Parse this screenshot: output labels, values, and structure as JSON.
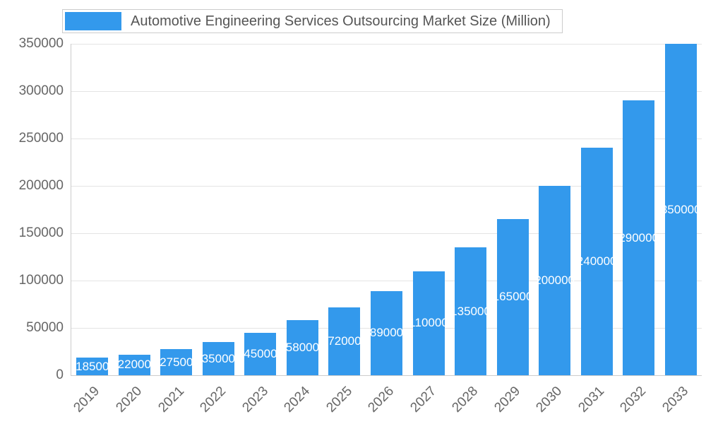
{
  "chart_data": {
    "type": "bar",
    "title": "Automotive Engineering Services Outsourcing Market Size (Million)",
    "categories": [
      "2019",
      "2020",
      "2021",
      "2022",
      "2023",
      "2024",
      "2025",
      "2026",
      "2027",
      "2028",
      "2029",
      "2030",
      "2031",
      "2032",
      "2033"
    ],
    "values": [
      18500,
      22000,
      27500,
      35000,
      45000,
      58000,
      72000,
      89000,
      110000,
      135000,
      165000,
      200000,
      240000,
      290000,
      350000
    ],
    "xlabel": "",
    "ylabel": "",
    "ylim": [
      0,
      350000
    ],
    "y_ticks": [
      0,
      50000,
      100000,
      150000,
      200000,
      250000,
      300000,
      350000
    ],
    "grid": true,
    "legend_position": "top",
    "bar_color": "#3399ec",
    "value_label_color": "#ffffff",
    "tick_color": "#666666",
    "title_color": "#555555"
  }
}
